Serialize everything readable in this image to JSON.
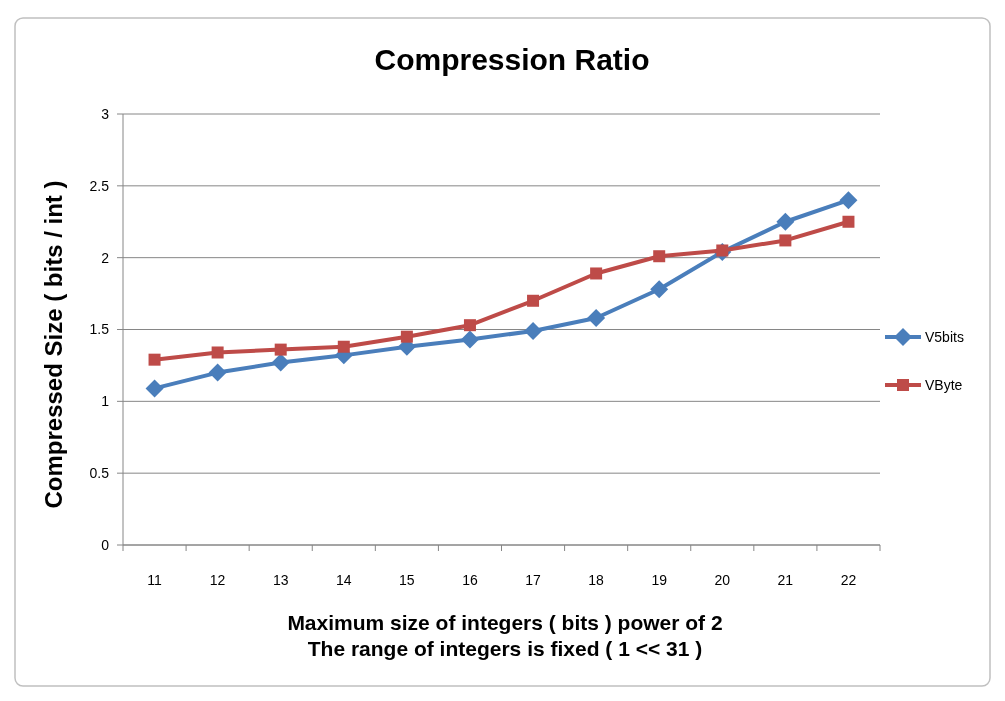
{
  "chart_data": {
    "type": "line",
    "title": "Compression Ratio",
    "xlabel": "Maximum size of integers ( bits ) power of 2\nThe range of integers is fixed ( 1 << 31 )",
    "ylabel": "Compressed Size ( bits / int )",
    "categories": [
      "11",
      "12",
      "13",
      "14",
      "15",
      "16",
      "17",
      "18",
      "19",
      "20",
      "21",
      "22"
    ],
    "series": [
      {
        "name": "V5bits",
        "color": "#4a7ebb",
        "marker": "diamond",
        "values": [
          1.09,
          1.2,
          1.27,
          1.32,
          1.38,
          1.43,
          1.49,
          1.58,
          1.78,
          2.04,
          2.25,
          2.4
        ]
      },
      {
        "name": "VByte",
        "color": "#be4b48",
        "marker": "square",
        "values": [
          1.29,
          1.34,
          1.36,
          1.38,
          1.45,
          1.53,
          1.7,
          1.89,
          2.01,
          2.05,
          2.12,
          2.25
        ]
      }
    ],
    "ylim": [
      0,
      3
    ],
    "yticks": [
      0,
      0.5,
      1,
      1.5,
      2,
      2.5,
      3
    ],
    "grid": "y",
    "legend": "right"
  }
}
